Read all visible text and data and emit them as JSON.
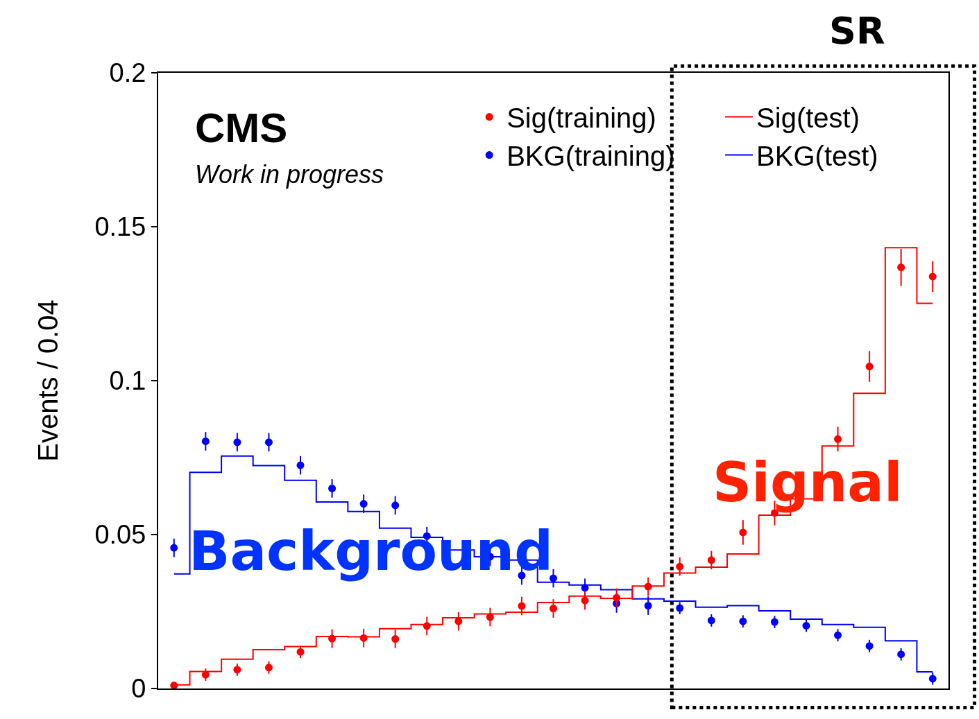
{
  "chart_data": {
    "type": "step",
    "ylabel": "Events / 0.04",
    "categories": [
      null,
      null,
      null,
      null,
      null,
      null,
      null,
      null,
      null,
      null,
      null,
      null,
      null,
      null,
      null,
      null,
      null,
      null,
      null,
      null,
      null,
      null,
      null,
      null,
      null
    ],
    "series": [
      {
        "name": "Sig(training)",
        "type": "scatter",
        "color": "#ff0000",
        "marker": "circle",
        "values": [
          0.001,
          0.0045,
          0.0061,
          0.0068,
          0.0119,
          0.0162,
          0.0164,
          0.0161,
          0.0203,
          0.0218,
          0.0232,
          0.0268,
          0.026,
          0.0286,
          0.0295,
          0.0331,
          0.0396,
          0.0417,
          0.0507,
          0.057,
          null,
          0.081,
          0.1046,
          0.1368,
          0.1338
        ],
        "errors": [
          0.001,
          0.002,
          0.002,
          0.002,
          0.002,
          0.003,
          0.003,
          0.003,
          0.003,
          0.003,
          0.003,
          0.003,
          0.003,
          0.003,
          0.003,
          0.003,
          0.003,
          0.003,
          0.004,
          0.004,
          null,
          0.004,
          0.005,
          0.006,
          0.005
        ]
      },
      {
        "name": "Sig(test)",
        "color": "#ff0000",
        "values": [
          0.0012,
          0.0055,
          0.0095,
          0.0126,
          0.0136,
          0.0169,
          0.0168,
          0.0194,
          0.0208,
          0.023,
          0.0242,
          0.0248,
          0.0279,
          0.03,
          0.0293,
          0.0333,
          0.0375,
          0.0394,
          0.0437,
          0.0563,
          0.0616,
          0.0788,
          0.0959,
          0.1432,
          0.1251
        ]
      },
      {
        "name": "BKG(training)",
        "type": "scatter",
        "color": "#0000ff",
        "marker": "circle",
        "values": [
          0.0457,
          0.0803,
          0.08,
          0.08,
          0.0725,
          0.065,
          0.06,
          0.0595,
          0.0495,
          null,
          0.0428,
          0.0367,
          0.0358,
          0.0327,
          0.0276,
          0.0269,
          0.0261,
          0.0221,
          0.0218,
          0.0216,
          0.0204,
          0.0173,
          0.0138,
          0.0111,
          0.0032
        ],
        "errors": [
          0.003,
          0.003,
          0.003,
          0.003,
          0.003,
          0.003,
          0.003,
          0.003,
          0.003,
          null,
          0.003,
          0.003,
          0.003,
          0.003,
          0.003,
          0.003,
          0.002,
          0.002,
          0.002,
          0.002,
          0.002,
          0.002,
          0.002,
          0.002,
          0.002
        ]
      },
      {
        "name": "BKG(test)",
        "color": "#0000ff",
        "values": [
          0.0372,
          0.0702,
          0.0755,
          0.0724,
          0.0676,
          0.0606,
          0.0575,
          0.0521,
          0.0491,
          0.045,
          0.0428,
          0.0417,
          0.0345,
          0.0336,
          0.0321,
          0.0291,
          0.0284,
          0.0264,
          0.0269,
          0.0252,
          0.0225,
          0.0208,
          0.0199,
          0.0155,
          0.0054
        ]
      }
    ],
    "ylim": [
      0,
      0.2
    ],
    "yticks": [
      0,
      0.05,
      0.1,
      0.15,
      0.2
    ],
    "legend": "top right",
    "annotations": [
      "CMS",
      "Work in progress",
      "Background",
      "Signal",
      "SR"
    ]
  }
}
